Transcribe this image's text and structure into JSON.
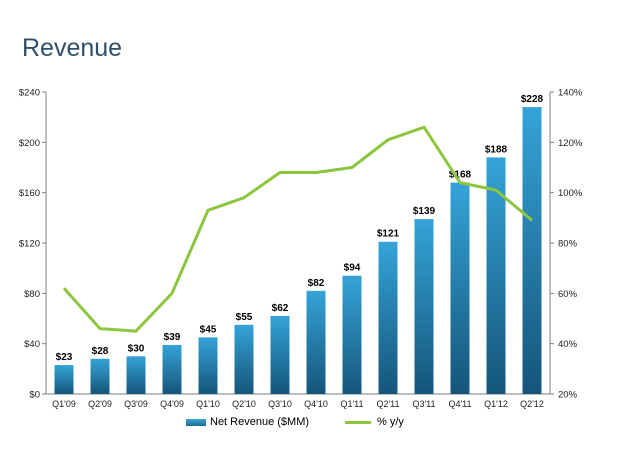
{
  "title": "Revenue",
  "chart_data": {
    "type": "bar",
    "categories": [
      "Q1'09",
      "Q2'09",
      "Q3'09",
      "Q4'09",
      "Q1'10",
      "Q2'10",
      "Q3'10",
      "Q4'10",
      "Q1'11",
      "Q2'11",
      "Q3'11",
      "Q4'11",
      "Q1'12",
      "Q2'12"
    ],
    "series": [
      {
        "name": "Net Revenue ($MM)",
        "type": "bar",
        "axis": "left",
        "values": [
          23,
          28,
          30,
          39,
          45,
          55,
          62,
          82,
          94,
          121,
          139,
          168,
          188,
          228
        ],
        "labels": [
          "$23",
          "$28",
          "$30",
          "$39",
          "$45",
          "$55",
          "$62",
          "$82",
          "$94",
          "$121",
          "$139",
          "$168",
          "$188",
          "$228"
        ],
        "color": "#1f7fb0"
      },
      {
        "name": "% y/y",
        "type": "line",
        "axis": "right",
        "values": [
          62,
          46,
          45,
          60,
          93,
          98,
          108,
          108,
          110,
          121,
          126,
          104,
          101,
          89
        ],
        "color": "#8cc63f"
      }
    ],
    "ylim_left": [
      0,
      240
    ],
    "yticks_left": [
      "$0",
      "$40",
      "$80",
      "$120",
      "$160",
      "$200",
      "$240"
    ],
    "ylim_right": [
      20,
      140
    ],
    "yticks_right": [
      "20%",
      "40%",
      "60%",
      "80%",
      "100%",
      "120%",
      "140%"
    ],
    "grid": false,
    "legend_position": "bottom"
  },
  "legend": {
    "bar_label": "Net Revenue ($MM)",
    "line_label": "% y/y"
  }
}
